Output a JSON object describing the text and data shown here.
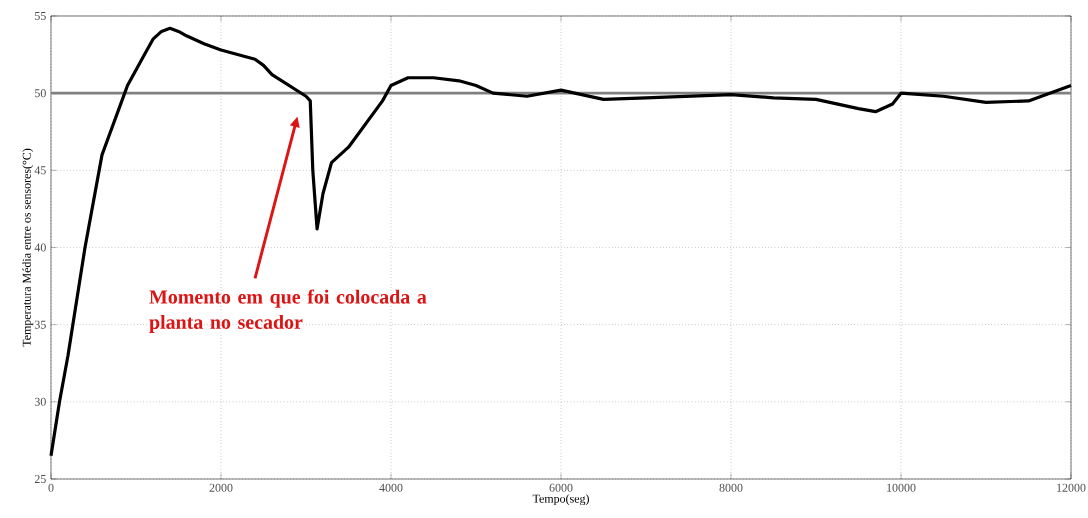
{
  "chart_data": {
    "type": "line",
    "xlabel": "Tempo(seg)",
    "ylabel": "Temperatura Média entre os sensores(°C)",
    "x": [
      0,
      100,
      200,
      300,
      400,
      500,
      600,
      700,
      800,
      900,
      1000,
      1100,
      1200,
      1300,
      1400,
      1500,
      1600,
      1800,
      2000,
      2200,
      2400,
      2500,
      2600,
      2800,
      3000,
      3050,
      3080,
      3130,
      3200,
      3300,
      3500,
      3700,
      3900,
      4000,
      4200,
      4500,
      4800,
      5000,
      5200,
      5600,
      6000,
      6500,
      7000,
      7500,
      8000,
      8500,
      9000,
      9500,
      9700,
      9900,
      10000,
      10500,
      11000,
      11500,
      12000
    ],
    "series": [
      {
        "color": "#000000",
        "values": [
          26.5,
          30,
          33,
          36.5,
          40,
          43,
          46,
          47.5,
          49,
          50.5,
          51.5,
          52.5,
          53.5,
          54,
          54.2,
          54,
          53.7,
          53.2,
          52.8,
          52.5,
          52.2,
          51.8,
          51.2,
          50.5,
          49.8,
          49.5,
          45,
          41.2,
          43.5,
          45.5,
          46.5,
          48,
          49.5,
          50.5,
          51,
          51,
          50.8,
          50.5,
          50,
          49.8,
          50.2,
          49.6,
          49.7,
          49.8,
          49.9,
          49.7,
          49.6,
          49,
          48.8,
          49.3,
          50,
          49.8,
          49.4,
          49.5,
          50.5
        ]
      }
    ],
    "xlim": [
      0,
      12000
    ],
    "ylim": [
      25,
      55
    ],
    "xticks": [
      0,
      2000,
      4000,
      6000,
      8000,
      10000,
      12000
    ],
    "yticks": [
      25,
      30,
      35,
      40,
      45,
      50,
      55
    ],
    "grid": true,
    "ref_lines": [
      {
        "axis": "y",
        "value": 50,
        "color": "#808080"
      }
    ],
    "annotations": [
      "Momento em que foi colocada a planta no secador"
    ]
  }
}
